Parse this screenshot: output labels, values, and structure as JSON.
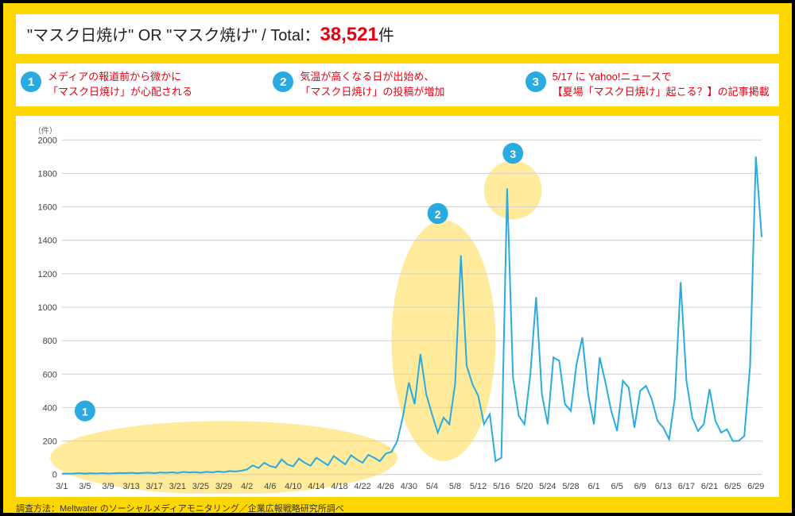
{
  "title": {
    "query": "\"マスク日焼け\" OR \"マスク焼け\"",
    "sep": " / ",
    "total_label": "Total：",
    "total_value": "38,521",
    "total_suffix": "件"
  },
  "callouts": [
    {
      "num": "1",
      "text": "メディアの報道前から微かに\n「マスク日焼け」が心配される"
    },
    {
      "num": "2",
      "text": "気温が高くなる日が出始め、\n「マスク日焼け」の投稿が増加"
    },
    {
      "num": "3",
      "text": "5/17 に Yahoo!ニュースで\n【夏場「マスク日焼け」起こる？】の記事掲載"
    }
  ],
  "footer": "調査方法：Meltwater のソーシャルメディアモニタリング／企業広報戦略研究所調べ",
  "chart": {
    "type": "line",
    "y_unit_label": "（件）",
    "background_color": "#ffffff",
    "grid_color": "#d0d0d0",
    "line_color": "#29abe2",
    "line_width": 2,
    "highlight_color": "#ffe88a",
    "badge_color": "#29abe2",
    "ylim": [
      0,
      2000
    ],
    "ytick_step": 200,
    "yticks": [
      0,
      200,
      400,
      600,
      800,
      1000,
      1200,
      1400,
      1600,
      1800,
      2000
    ],
    "x_labels": [
      "3/1",
      "3/5",
      "3/9",
      "3/13",
      "3/17",
      "3/21",
      "3/25",
      "3/29",
      "4/2",
      "4/6",
      "4/10",
      "4/14",
      "4/18",
      "4/22",
      "4/26",
      "4/30",
      "5/4",
      "5/8",
      "5/12",
      "5/16",
      "5/20",
      "5/24",
      "5/28",
      "6/1",
      "6/5",
      "6/9",
      "6/13",
      "6/17",
      "6/21",
      "6/25",
      "6/29"
    ],
    "x_label_step_days": 4,
    "n_points": 122,
    "values": [
      5,
      5,
      6,
      8,
      5,
      7,
      6,
      8,
      6,
      7,
      9,
      8,
      10,
      7,
      9,
      11,
      8,
      12,
      10,
      13,
      9,
      15,
      12,
      14,
      10,
      16,
      13,
      18,
      14,
      20,
      18,
      22,
      30,
      55,
      38,
      70,
      50,
      42,
      90,
      60,
      48,
      95,
      70,
      52,
      100,
      78,
      55,
      110,
      85,
      60,
      115,
      90,
      70,
      118,
      100,
      80,
      125,
      135,
      200,
      350,
      550,
      420,
      720,
      480,
      360,
      250,
      340,
      300,
      540,
      1310,
      650,
      540,
      470,
      300,
      360,
      80,
      100,
      1710,
      580,
      350,
      300,
      600,
      1060,
      480,
      300,
      700,
      680,
      420,
      380,
      660,
      820,
      480,
      300,
      700,
      550,
      380,
      260,
      560,
      520,
      280,
      500,
      530,
      450,
      320,
      280,
      210,
      460,
      1150,
      560,
      340,
      260,
      300,
      510,
      320,
      250,
      270,
      200,
      200,
      230,
      650,
      1900,
      1420
    ],
    "highlights": [
      {
        "num": "1",
        "shape": "ellipse",
        "cx_idx": 28,
        "cy_val": 100,
        "rx_idx": 30,
        "ry_val": 220,
        "badge_x_idx": 4,
        "badge_y_val": 380
      },
      {
        "num": "2",
        "shape": "ellipse",
        "cx_idx": 66,
        "cy_val": 800,
        "rx_idx": 9,
        "ry_val": 720,
        "badge_x_idx": 65,
        "badge_y_val": 1560
      },
      {
        "num": "3",
        "shape": "circle",
        "cx_idx": 78,
        "cy_val": 1700,
        "r_idx": 5,
        "badge_x_idx": 78,
        "badge_y_val": 1920
      }
    ]
  }
}
